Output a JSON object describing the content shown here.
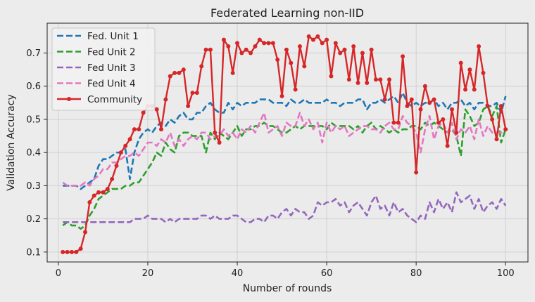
{
  "chart_data": {
    "type": "line",
    "title": "Federated Learning non-IID",
    "xlabel": "Number of rounds",
    "ylabel": "Validation Accuracy",
    "xlim": [
      -2.5,
      105
    ],
    "ylim": [
      0.07,
      0.79
    ],
    "xticks": [
      0,
      20,
      40,
      60,
      80,
      100
    ],
    "yticks": [
      0.1,
      0.2,
      0.3,
      0.4,
      0.5,
      0.6,
      0.7
    ],
    "grid": true,
    "legend_position": "top-left",
    "x": [
      1,
      2,
      3,
      4,
      5,
      6,
      7,
      8,
      9,
      10,
      11,
      12,
      13,
      14,
      15,
      16,
      17,
      18,
      19,
      20,
      21,
      22,
      23,
      24,
      25,
      26,
      27,
      28,
      29,
      30,
      31,
      32,
      33,
      34,
      35,
      36,
      37,
      38,
      39,
      40,
      41,
      42,
      43,
      44,
      45,
      46,
      47,
      48,
      49,
      50,
      51,
      52,
      53,
      54,
      55,
      56,
      57,
      58,
      59,
      60,
      61,
      62,
      63,
      64,
      65,
      66,
      67,
      68,
      69,
      70,
      71,
      72,
      73,
      74,
      75,
      76,
      77,
      78,
      79,
      80,
      81,
      82,
      83,
      84,
      85,
      86,
      87,
      88,
      89,
      90,
      91,
      92,
      93,
      94,
      95,
      96,
      97,
      98,
      99,
      100
    ],
    "series": [
      {
        "name": "Fed. Unit 1",
        "color": "#1f77b4",
        "dash": "dashed",
        "values": [
          0.3,
          0.3,
          0.3,
          0.3,
          0.29,
          0.3,
          0.31,
          0.32,
          0.36,
          0.38,
          0.38,
          0.39,
          0.4,
          0.4,
          0.41,
          0.32,
          0.4,
          0.44,
          0.46,
          0.47,
          0.46,
          0.48,
          0.49,
          0.48,
          0.5,
          0.49,
          0.51,
          0.52,
          0.5,
          0.5,
          0.52,
          0.52,
          0.54,
          0.55,
          0.53,
          0.52,
          0.52,
          0.55,
          0.53,
          0.55,
          0.54,
          0.55,
          0.55,
          0.55,
          0.56,
          0.56,
          0.56,
          0.55,
          0.55,
          0.55,
          0.54,
          0.56,
          0.55,
          0.55,
          0.56,
          0.55,
          0.55,
          0.55,
          0.55,
          0.56,
          0.55,
          0.55,
          0.54,
          0.55,
          0.55,
          0.55,
          0.56,
          0.56,
          0.53,
          0.55,
          0.55,
          0.56,
          0.55,
          0.56,
          0.57,
          0.55,
          0.58,
          0.55,
          0.54,
          0.55,
          0.54,
          0.55,
          0.55,
          0.56,
          0.54,
          0.55,
          0.53,
          0.55,
          0.55,
          0.56,
          0.54,
          0.55,
          0.53,
          0.55,
          0.55,
          0.54,
          0.54,
          0.55,
          0.52,
          0.57
        ]
      },
      {
        "name": "Fed Unit 2",
        "color": "#2ca02c",
        "dash": "dashed",
        "values": [
          0.18,
          0.19,
          0.18,
          0.18,
          0.17,
          0.18,
          0.21,
          0.23,
          0.26,
          0.27,
          0.28,
          0.29,
          0.29,
          0.29,
          0.3,
          0.3,
          0.31,
          0.31,
          0.33,
          0.35,
          0.37,
          0.4,
          0.39,
          0.43,
          0.41,
          0.4,
          0.45,
          0.46,
          0.46,
          0.45,
          0.45,
          0.45,
          0.4,
          0.46,
          0.44,
          0.46,
          0.45,
          0.44,
          0.46,
          0.48,
          0.45,
          0.47,
          0.47,
          0.48,
          0.48,
          0.49,
          0.48,
          0.48,
          0.47,
          0.46,
          0.46,
          0.47,
          0.48,
          0.47,
          0.48,
          0.48,
          0.48,
          0.48,
          0.48,
          0.47,
          0.49,
          0.48,
          0.48,
          0.48,
          0.48,
          0.47,
          0.48,
          0.46,
          0.48,
          0.49,
          0.47,
          0.48,
          0.47,
          0.46,
          0.47,
          0.46,
          0.47,
          0.47,
          0.48,
          0.48,
          0.47,
          0.49,
          0.48,
          0.49,
          0.48,
          0.47,
          0.46,
          0.47,
          0.45,
          0.39,
          0.53,
          0.51,
          0.48,
          0.49,
          0.53,
          0.54,
          0.51,
          0.54,
          0.43,
          0.47
        ]
      },
      {
        "name": "Fed Unit 3",
        "color": "#9467bd",
        "dash": "dashed",
        "values": [
          0.19,
          0.19,
          0.19,
          0.19,
          0.19,
          0.19,
          0.19,
          0.19,
          0.19,
          0.19,
          0.19,
          0.19,
          0.19,
          0.19,
          0.19,
          0.19,
          0.2,
          0.2,
          0.2,
          0.21,
          0.2,
          0.2,
          0.2,
          0.19,
          0.2,
          0.19,
          0.2,
          0.2,
          0.2,
          0.2,
          0.2,
          0.21,
          0.21,
          0.2,
          0.21,
          0.2,
          0.2,
          0.2,
          0.21,
          0.21,
          0.2,
          0.19,
          0.19,
          0.2,
          0.2,
          0.19,
          0.21,
          0.21,
          0.2,
          0.22,
          0.23,
          0.21,
          0.23,
          0.22,
          0.22,
          0.2,
          0.21,
          0.25,
          0.24,
          0.25,
          0.25,
          0.26,
          0.24,
          0.25,
          0.22,
          0.24,
          0.25,
          0.23,
          0.21,
          0.25,
          0.27,
          0.23,
          0.24,
          0.21,
          0.25,
          0.22,
          0.23,
          0.21,
          0.2,
          0.19,
          0.21,
          0.2,
          0.25,
          0.22,
          0.26,
          0.23,
          0.25,
          0.22,
          0.28,
          0.25,
          0.26,
          0.27,
          0.23,
          0.26,
          0.22,
          0.24,
          0.25,
          0.23,
          0.26,
          0.24
        ]
      },
      {
        "name": "Fed Unit 4",
        "color": "#e377c2",
        "dash": "dashed",
        "values": [
          0.31,
          0.3,
          0.3,
          0.3,
          0.3,
          0.31,
          0.3,
          0.32,
          0.33,
          0.35,
          0.35,
          0.37,
          0.37,
          0.38,
          0.39,
          0.39,
          0.4,
          0.39,
          0.41,
          0.43,
          0.43,
          0.42,
          0.44,
          0.43,
          0.46,
          0.42,
          0.44,
          0.42,
          0.44,
          0.45,
          0.44,
          0.46,
          0.46,
          0.44,
          0.45,
          0.45,
          0.47,
          0.45,
          0.46,
          0.44,
          0.47,
          0.46,
          0.48,
          0.46,
          0.49,
          0.52,
          0.46,
          0.47,
          0.48,
          0.45,
          0.49,
          0.48,
          0.48,
          0.52,
          0.48,
          0.5,
          0.47,
          0.49,
          0.43,
          0.49,
          0.46,
          0.48,
          0.47,
          0.48,
          0.45,
          0.46,
          0.47,
          0.48,
          0.48,
          0.47,
          0.47,
          0.46,
          0.48,
          0.49,
          0.47,
          0.47,
          0.51,
          0.49,
          0.48,
          0.46,
          0.4,
          0.47,
          0.51,
          0.44,
          0.48,
          0.49,
          0.46,
          0.49,
          0.44,
          0.47,
          0.46,
          0.48,
          0.44,
          0.5,
          0.45,
          0.48,
          0.46,
          0.46,
          0.46,
          0.47
        ]
      },
      {
        "name": "Community",
        "color": "#d62728",
        "dash": "solid",
        "marker": "circle",
        "values": [
          0.1,
          0.1,
          0.1,
          0.1,
          0.11,
          0.16,
          0.25,
          0.27,
          0.28,
          0.28,
          0.29,
          0.32,
          0.36,
          0.4,
          0.42,
          0.44,
          0.47,
          0.47,
          0.52,
          0.54,
          0.54,
          0.53,
          0.47,
          0.56,
          0.63,
          0.64,
          0.64,
          0.65,
          0.54,
          0.58,
          0.58,
          0.66,
          0.71,
          0.71,
          0.46,
          0.43,
          0.74,
          0.72,
          0.64,
          0.73,
          0.7,
          0.71,
          0.7,
          0.72,
          0.74,
          0.73,
          0.73,
          0.73,
          0.68,
          0.57,
          0.71,
          0.67,
          0.59,
          0.72,
          0.66,
          0.75,
          0.74,
          0.75,
          0.73,
          0.74,
          0.63,
          0.73,
          0.7,
          0.71,
          0.62,
          0.72,
          0.61,
          0.7,
          0.61,
          0.71,
          0.62,
          0.62,
          0.56,
          0.62,
          0.49,
          0.49,
          0.69,
          0.54,
          0.56,
          0.34,
          0.53,
          0.6,
          0.55,
          0.56,
          0.49,
          0.5,
          0.42,
          0.53,
          0.46,
          0.67,
          0.59,
          0.65,
          0.59,
          0.72,
          0.64,
          0.54,
          0.5,
          0.44,
          0.54,
          0.47
        ]
      }
    ]
  }
}
